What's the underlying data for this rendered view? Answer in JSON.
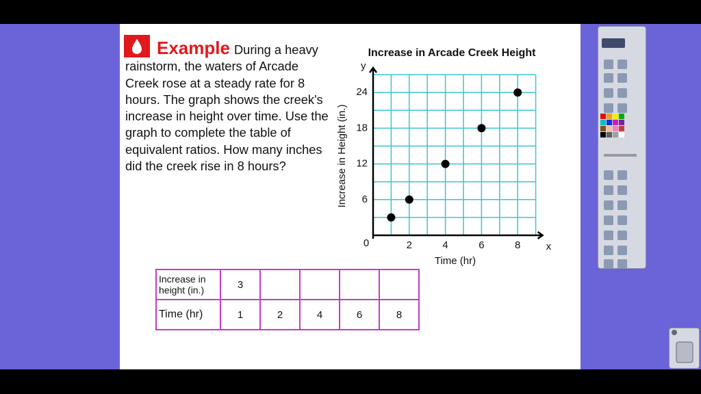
{
  "example": {
    "label": "Example",
    "text": "During a heavy rainstorm, the waters of Arcade Creek rose at a steady rate for 8 hours. The graph shows the creek's increase in height over time. Use the graph to complete the table of equivalent ratios. How many inches did the creek rise in 8 hours?"
  },
  "chart_data": {
    "type": "scatter",
    "title": "Increase in Arcade Creek Height",
    "x_label": "Time (hr)",
    "y_label": "Increase in Height (in.)",
    "x_axis_letter": "x",
    "y_axis_letter": "y",
    "origin_label": "0",
    "x": [
      1,
      2,
      4,
      6,
      8
    ],
    "values": [
      3,
      6,
      12,
      18,
      24
    ],
    "color": "#000000",
    "grid_color": "#3cc4d0",
    "xlim": [
      0,
      9
    ],
    "ylim": [
      0,
      27
    ],
    "xticks": [
      2,
      4,
      6,
      8
    ],
    "yticks": [
      6,
      12,
      18,
      24
    ],
    "x_minor_grid": [
      1,
      3,
      5,
      7,
      9
    ],
    "y_minor_grid": [
      3,
      9,
      15,
      21,
      27
    ]
  },
  "table": {
    "rows": [
      [
        "Increase in height (in.)",
        3,
        null,
        null,
        null,
        null
      ],
      [
        "Time (hr)",
        1,
        2,
        4,
        6,
        8
      ]
    ]
  }
}
